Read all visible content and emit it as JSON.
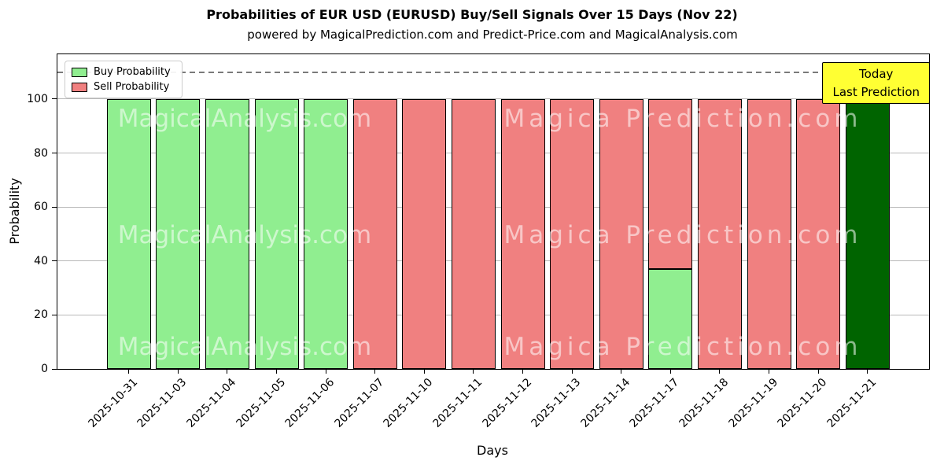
{
  "chart_data": {
    "type": "bar",
    "stacked": true,
    "title": "Probabilities of EUR USD (EURUSD) Buy/Sell Signals Over 15 Days (Nov 22)",
    "subtitle": "powered by MagicalPrediction.com and Predict-Price.com and MagicalAnalysis.com",
    "xlabel": "Days",
    "ylabel": "Probability",
    "ylim": [
      0,
      116.6
    ],
    "yticks": [
      0,
      20,
      40,
      60,
      80,
      100
    ],
    "dashed_guide_y": 110,
    "grid": "horizontal",
    "legend_position": "upper-left",
    "categories": [
      "2025-10-31",
      "2025-11-03",
      "2025-11-04",
      "2025-11-05",
      "2025-11-06",
      "2025-11-07",
      "2025-11-10",
      "2025-11-11",
      "2025-11-12",
      "2025-11-13",
      "2025-11-14",
      "2025-11-17",
      "2025-11-18",
      "2025-11-19",
      "2025-11-20",
      "2025-11-21"
    ],
    "series": [
      {
        "name": "Buy Probability",
        "color": "#90ee90",
        "values": [
          100,
          100,
          100,
          100,
          100,
          0,
          0,
          0,
          0,
          0,
          0,
          37,
          0,
          0,
          0,
          100
        ]
      },
      {
        "name": "Sell Probability",
        "color": "#f08080",
        "values": [
          0,
          0,
          0,
          0,
          0,
          100,
          100,
          100,
          100,
          100,
          100,
          63,
          100,
          100,
          100,
          0
        ]
      }
    ],
    "today_highlight": {
      "category": "2025-11-21",
      "color": "#006400"
    },
    "bar_edge_color": "#000000",
    "annotation_box": {
      "lines": [
        "Today",
        "Last Prediction"
      ],
      "bg_color": "#ffff33",
      "border_color": "#000000"
    },
    "watermarks": {
      "left": "MagicalAnalysis.com",
      "right": "Magica Prediction.com"
    }
  }
}
